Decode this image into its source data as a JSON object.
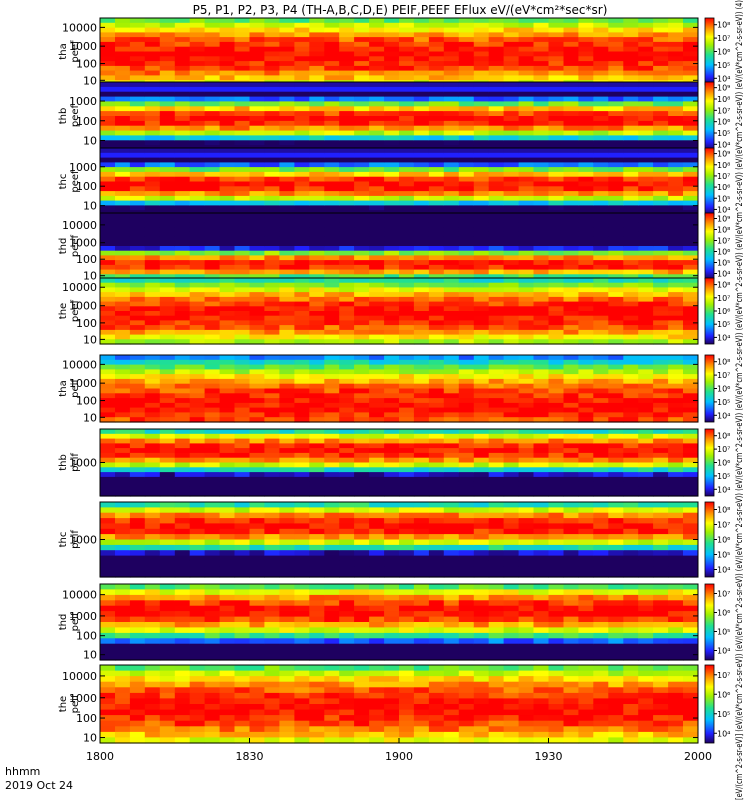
{
  "title": "P5, P1, P2, P3, P4 (TH-A,B,C,D,E) PEIF,PEEF EFlux eV/(eV*cm²*sec*sr)",
  "xaxis": {
    "ticks": [
      "1800",
      "1830",
      "1900",
      "1930",
      "2000"
    ],
    "label_line1": "hhmm",
    "label_line2": "2019 Oct 24"
  },
  "colorbar_label": "[eV/(cm^2-s-sr-eV)] (eV/(eV*cm^2-s-sr-eV)) (eV/(eV*cm^2-s-sr-eV)) (eV/(eV*cm^2-s-sr-eV)) (eV/(eV*cm^2-s-sr-eV)) (eV/(eV*cm^2-s-sr-eV)) (eV/(eV*cm^2-s-sr-eV)) (eV/(eV*cm^2-s-sr-eV)) (eV/(eV*cm^2-s-sr-eV)) (eV/(eV*cm^2-s-sr-eV)) (4)",
  "chart_data": [
    {
      "type": "heatmap",
      "probe": "tha",
      "ylabel": [
        "tha",
        "peef"
      ],
      "yticks": [
        "10",
        "100",
        "1000",
        "10000"
      ],
      "cbticks": [
        "10⁴",
        "10⁵",
        "10⁶",
        "10⁷",
        "10⁸"
      ],
      "peak_log": 5.8,
      "ridge_log": 3.0
    },
    {
      "type": "heatmap",
      "probe": "thb",
      "ylabel": [
        "thb",
        "peef"
      ],
      "yticks": [
        "10",
        "100",
        "1000"
      ],
      "cbticks": [
        "10⁴",
        "10⁵",
        "10⁶",
        "10⁷",
        "10⁸",
        "10⁹"
      ],
      "peak_log": 8.9,
      "ridge_log": 1.6
    },
    {
      "type": "heatmap",
      "probe": "thc",
      "ylabel": [
        "thc",
        "peef"
      ],
      "yticks": [
        "10",
        "100",
        "1000"
      ],
      "cbticks": [
        "10⁴",
        "10⁵",
        "10⁶",
        "10⁷",
        "10⁸",
        "10⁹"
      ],
      "peak_log": 8.9,
      "ridge_log": 1.6
    },
    {
      "type": "heatmap",
      "probe": "thd",
      "ylabel": [
        "thd",
        "peef"
      ],
      "yticks": [
        "10",
        "100",
        "1000",
        "10000"
      ],
      "cbticks": [
        "10⁴",
        "10⁵",
        "10⁶",
        "10⁷",
        "10⁸",
        "10⁹"
      ],
      "peak_log": 8.6,
      "ridge_log": 1.4
    },
    {
      "type": "heatmap",
      "probe": "the",
      "ylabel": [
        "the",
        "peef"
      ],
      "yticks": [
        "10",
        "100",
        "1000",
        "10000"
      ],
      "cbticks": [
        "10⁴",
        "10⁵",
        "10⁶",
        "10⁷",
        "10⁸"
      ],
      "peak_log": 6.2,
      "ridge_log": 2.2
    },
    {
      "type": "heatmap",
      "probe": "tha",
      "ylabel": [
        "tha",
        "peif"
      ],
      "yticks": [
        "10",
        "100",
        "1000",
        "10000"
      ],
      "cbticks": [
        "10⁴",
        "10⁵",
        "10⁶",
        "10⁷",
        "10⁸"
      ],
      "peak_log": 6.0,
      "ridge_log": 3.8
    },
    {
      "type": "heatmap",
      "probe": "thb",
      "ylabel": [
        "thb",
        "peif"
      ],
      "yticks": [
        "1000"
      ],
      "cbticks": [
        "10⁴",
        "10⁵",
        "10⁶",
        "10⁷",
        "10⁸"
      ],
      "peak_log": 7.8,
      "ridge_log": 3.3
    },
    {
      "type": "heatmap",
      "probe": "thc",
      "ylabel": [
        "thc",
        "peif"
      ],
      "yticks": [
        "1000"
      ],
      "cbticks": [
        "10⁴",
        "10⁵",
        "10⁶",
        "10⁷",
        "10⁸"
      ],
      "peak_log": 7.8,
      "ridge_log": 3.3
    },
    {
      "type": "heatmap",
      "probe": "thd",
      "ylabel": [
        "thd",
        "peif"
      ],
      "yticks": [
        "10",
        "100",
        "1000",
        "10000"
      ],
      "cbticks": [
        "10⁴",
        "10⁵",
        "10⁶",
        "10⁷"
      ],
      "peak_log": 7.3,
      "ridge_log": 2.6
    },
    {
      "type": "heatmap",
      "probe": "the",
      "ylabel": [
        "the",
        "peif"
      ],
      "yticks": [
        "10",
        "100",
        "1000",
        "10000"
      ],
      "cbticks": [
        "10⁴",
        "10⁵",
        "10⁶",
        "10⁷"
      ],
      "peak_log": 5.9,
      "ridge_log": 2.6
    }
  ]
}
